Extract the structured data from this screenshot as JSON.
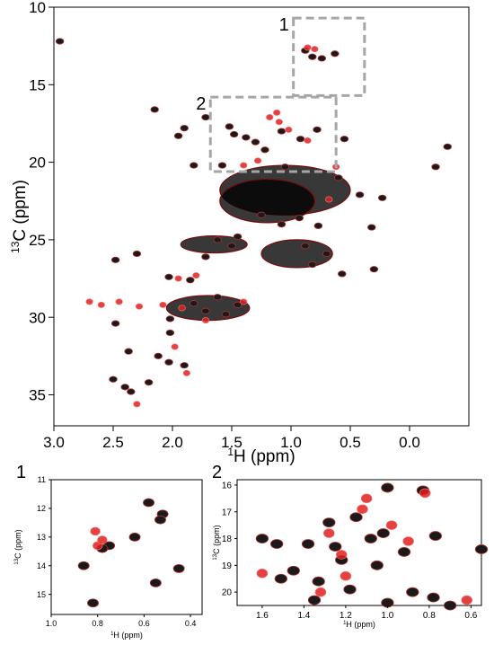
{
  "chart_data": [
    {
      "type": "scatter",
      "panel": "main",
      "xlabel_main": "H (ppm)",
      "xlabel_sup": "1",
      "ylabel_main": "C (ppm)",
      "ylabel_sup": "13",
      "xlim": [
        3.0,
        -0.5
      ],
      "ylim": [
        10,
        37
      ],
      "x_ticks": [
        "3.0",
        "2.5",
        "2.0",
        "1.5",
        "1.0",
        "0.5",
        "0.0"
      ],
      "x_tick_values": [
        3.0,
        2.5,
        2.0,
        1.5,
        1.0,
        0.5,
        0.0
      ],
      "y_ticks": [
        "10",
        "15",
        "20",
        "25",
        "30",
        "35"
      ],
      "y_tick_values": [
        10,
        15,
        20,
        25,
        30,
        35
      ],
      "inset_boxes": [
        {
          "label": "1",
          "x": [
            0.98,
            0.38
          ],
          "y": [
            10.7,
            15.7
          ]
        },
        {
          "label": "2",
          "x": [
            1.68,
            0.62
          ],
          "y": [
            15.8,
            20.6
          ]
        }
      ],
      "series": [
        {
          "color": "#000000",
          "points": [
            [
              2.95,
              12.2
            ],
            [
              2.15,
              16.6
            ],
            [
              1.72,
              17.1
            ],
            [
              1.52,
              17.7
            ],
            [
              1.48,
              18.2
            ],
            [
              1.38,
              18.4
            ],
            [
              1.3,
              18.7
            ],
            [
              1.22,
              19.2
            ],
            [
              1.08,
              18.0
            ],
            [
              0.92,
              18.5
            ],
            [
              0.78,
              17.9
            ],
            [
              0.55,
              18.5
            ],
            [
              0.82,
              13.2
            ],
            [
              0.74,
              13.3
            ],
            [
              0.63,
              13.0
            ],
            [
              0.88,
              12.8
            ],
            [
              1.9,
              17.8
            ],
            [
              1.95,
              18.3
            ],
            [
              1.82,
              20.2
            ],
            [
              1.58,
              20.2
            ],
            [
              1.05,
              20.3
            ],
            [
              0.6,
              21.0
            ],
            [
              0.42,
              22.1
            ],
            [
              0.23,
              22.3
            ],
            [
              -0.22,
              20.3
            ],
            [
              -0.32,
              19.0
            ],
            [
              0.32,
              24.2
            ],
            [
              1.45,
              24.8
            ],
            [
              1.62,
              25.0
            ],
            [
              1.5,
              25.4
            ],
            [
              1.25,
              23.4
            ],
            [
              1.08,
              24.0
            ],
            [
              0.93,
              23.6
            ],
            [
              0.77,
              24.1
            ],
            [
              0.88,
              25.4
            ],
            [
              0.7,
              25.9
            ],
            [
              0.82,
              26.6
            ],
            [
              0.57,
              27.2
            ],
            [
              0.3,
              26.9
            ],
            [
              2.48,
              26.3
            ],
            [
              2.3,
              25.9
            ],
            [
              1.72,
              26.1
            ],
            [
              2.03,
              27.4
            ],
            [
              1.85,
              27.6
            ],
            [
              1.82,
              29.1
            ],
            [
              1.72,
              29.6
            ],
            [
              1.62,
              28.7
            ],
            [
              1.55,
              29.8
            ],
            [
              1.45,
              29.2
            ],
            [
              2.02,
              30.1
            ],
            [
              2.48,
              30.4
            ],
            [
              2.02,
              31.0
            ],
            [
              2.37,
              32.2
            ],
            [
              2.12,
              32.5
            ],
            [
              2.03,
              32.9
            ],
            [
              1.9,
              33.1
            ],
            [
              2.5,
              34.0
            ],
            [
              2.4,
              34.5
            ],
            [
              2.35,
              34.8
            ],
            [
              2.2,
              34.2
            ]
          ]
        },
        {
          "color": "#e02020",
          "points": [
            [
              0.86,
              12.6
            ],
            [
              0.8,
              12.7
            ],
            [
              1.12,
              16.8
            ],
            [
              1.18,
              17.1
            ],
            [
              1.1,
              17.4
            ],
            [
              1.02,
              17.9
            ],
            [
              0.86,
              18.6
            ],
            [
              1.4,
              20.2
            ],
            [
              1.28,
              19.9
            ],
            [
              0.62,
              20.3
            ],
            [
              0.68,
              22.4
            ],
            [
              2.7,
              29.0
            ],
            [
              2.6,
              29.2
            ],
            [
              2.45,
              29.0
            ],
            [
              2.28,
              29.3
            ],
            [
              2.08,
              29.2
            ],
            [
              1.92,
              29.4
            ],
            [
              1.95,
              27.5
            ],
            [
              1.8,
              27.3
            ],
            [
              1.72,
              30.2
            ],
            [
              1.4,
              29.0
            ],
            [
              1.98,
              31.9
            ],
            [
              1.88,
              33.6
            ],
            [
              2.3,
              35.6
            ]
          ]
        }
      ],
      "regions": [
        {
          "color": "#000000",
          "cx": 1.05,
          "cy": 21.8,
          "rx": 0.55,
          "ry": 1.6
        },
        {
          "color": "#000000",
          "cx": 1.2,
          "cy": 22.5,
          "rx": 0.4,
          "ry": 1.4
        },
        {
          "color": "#000000",
          "cx": 1.65,
          "cy": 25.3,
          "rx": 0.28,
          "ry": 0.55
        },
        {
          "color": "#000000",
          "cx": 0.95,
          "cy": 25.9,
          "rx": 0.3,
          "ry": 0.9
        },
        {
          "color": "#000000",
          "cx": 1.7,
          "cy": 29.4,
          "rx": 0.35,
          "ry": 0.8
        }
      ]
    },
    {
      "type": "scatter",
      "panel": "inset-1",
      "label": "1",
      "xlabel_main": "H (ppm)",
      "xlabel_sup": "1",
      "ylabel_main": "C (ppm)",
      "ylabel_sup": "13",
      "xlim": [
        1.0,
        0.35
      ],
      "ylim": [
        11,
        15.7
      ],
      "x_ticks": [
        "1.0",
        "0.8",
        "0.6",
        "0.4"
      ],
      "x_tick_values": [
        1.0,
        0.8,
        0.6,
        0.4
      ],
      "y_ticks": [
        "11",
        "12",
        "13",
        "14",
        "15"
      ],
      "y_tick_values": [
        11,
        12,
        13,
        14,
        15
      ],
      "series": [
        {
          "color": "#000000",
          "points": [
            [
              0.64,
              13.0
            ],
            [
              0.75,
              13.3
            ],
            [
              0.52,
              12.2
            ],
            [
              0.53,
              12.4
            ],
            [
              0.45,
              14.1
            ],
            [
              0.55,
              14.6
            ],
            [
              0.86,
              14.0
            ],
            [
              0.78,
              13.4
            ],
            [
              0.82,
              15.3
            ],
            [
              0.58,
              11.8
            ]
          ]
        },
        {
          "color": "#e02020",
          "points": [
            [
              0.81,
              12.8
            ],
            [
              0.8,
              13.3
            ],
            [
              0.78,
              13.1
            ]
          ]
        }
      ]
    },
    {
      "type": "scatter",
      "panel": "inset-2",
      "label": "2",
      "xlabel_main": "H (ppm)",
      "xlabel_sup": "1",
      "ylabel_main": "C (ppm)",
      "ylabel_sup": "13",
      "xlim": [
        1.72,
        0.55
      ],
      "ylim": [
        15.8,
        20.5
      ],
      "x_ticks": [
        "1.6",
        "1.4",
        "1.2",
        "1.0",
        "0.8",
        "0.6"
      ],
      "x_tick_values": [
        1.6,
        1.4,
        1.2,
        1.0,
        0.8,
        0.6
      ],
      "y_ticks": [
        "16",
        "17",
        "18",
        "19",
        "20"
      ],
      "y_tick_values": [
        16,
        17,
        18,
        19,
        20
      ],
      "series": [
        {
          "color": "#000000",
          "points": [
            [
              1.38,
              18.2
            ],
            [
              1.22,
              18.8
            ],
            [
              1.25,
              18.3
            ],
            [
              1.08,
              18.0
            ],
            [
              0.77,
              17.9
            ],
            [
              0.92,
              18.5
            ],
            [
              1.02,
              17.8
            ],
            [
              0.55,
              18.4
            ],
            [
              1.6,
              18.0
            ],
            [
              1.53,
              18.2
            ],
            [
              1.51,
              19.5
            ],
            [
              1.33,
              19.6
            ],
            [
              1.35,
              20.3
            ],
            [
              1.0,
              20.4
            ],
            [
              0.88,
              20.0
            ],
            [
              0.78,
              20.2
            ],
            [
              0.7,
              20.5
            ],
            [
              1.0,
              16.1
            ],
            [
              0.83,
              16.2
            ],
            [
              1.28,
              17.4
            ],
            [
              1.15,
              17.2
            ],
            [
              1.45,
              19.2
            ],
            [
              1.18,
              19.9
            ],
            [
              1.05,
              19.0
            ]
          ]
        },
        {
          "color": "#e02020",
          "points": [
            [
              1.1,
              16.5
            ],
            [
              1.12,
              16.9
            ],
            [
              1.28,
              17.8
            ],
            [
              0.98,
              17.5
            ],
            [
              0.9,
              18.1
            ],
            [
              1.22,
              18.6
            ],
            [
              1.32,
              20.0
            ],
            [
              1.6,
              19.3
            ],
            [
              1.2,
              19.4
            ],
            [
              0.62,
              20.3
            ],
            [
              0.82,
              16.3
            ]
          ]
        }
      ]
    }
  ]
}
